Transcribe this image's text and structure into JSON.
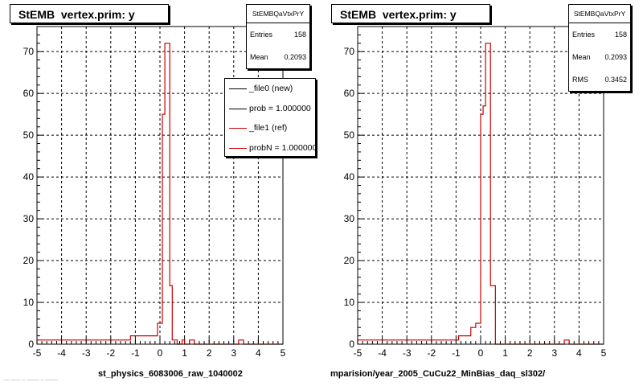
{
  "chart_data": [
    {
      "type": "step",
      "title": "StEMB  vertex.prim: y",
      "xlabel": "st_physics_6083006_raw_1040002",
      "xlim": [
        -5,
        5
      ],
      "ylim": [
        0,
        76
      ],
      "xticks": [
        "-5",
        "-4",
        "-3",
        "-2",
        "-1",
        "0",
        "1",
        "2",
        "3",
        "4",
        "5"
      ],
      "yticks": [
        "0",
        "10",
        "20",
        "30",
        "40",
        "50",
        "60",
        "70"
      ],
      "grid": true,
      "stats": {
        "name": "StEMBQaVtxPrY",
        "rows": [
          {
            "label": "Entries",
            "value": "158"
          },
          {
            "label": "Mean",
            "value": "0.2093"
          }
        ]
      },
      "legend": {
        "placement": "top-right",
        "entries": [
          {
            "label": "_file0 (new)",
            "color": "#000000"
          },
          {
            "label": "prob = 1.000000",
            "color": "#000000"
          },
          {
            "label": "_file1 (ref)",
            "color": "#cc0000"
          },
          {
            "label": "probN = 1.000000",
            "color": "#cc0000"
          }
        ]
      },
      "series": [
        {
          "color": "#cc0000",
          "bins": [
            [
              -5.0,
              -1.2,
              1
            ],
            [
              -1.2,
              -0.1,
              2
            ],
            [
              -0.1,
              0.1,
              5
            ],
            [
              0.1,
              0.2,
              55
            ],
            [
              0.2,
              0.4,
              72
            ],
            [
              0.4,
              0.5,
              14
            ],
            [
              0.5,
              0.7,
              1
            ],
            [
              0.7,
              0.9,
              0
            ],
            [
              0.9,
              1.0,
              1
            ],
            [
              1.0,
              1.2,
              0
            ],
            [
              1.2,
              1.4,
              1
            ],
            [
              1.4,
              3.2,
              0
            ],
            [
              3.2,
              3.4,
              1
            ],
            [
              3.4,
              5.0,
              0
            ]
          ]
        }
      ]
    },
    {
      "type": "step",
      "title": "StEMB  vertex.prim: y",
      "xlabel": "mparision/year_2005_CuCu22_MinBias_daq_sl302/",
      "xlim": [
        -5,
        5
      ],
      "ylim": [
        0,
        76
      ],
      "xticks": [
        "-5",
        "-4",
        "-3",
        "-2",
        "-1",
        "0",
        "1",
        "2",
        "3",
        "4",
        "5"
      ],
      "yticks": [
        "0",
        "10",
        "20",
        "30",
        "40",
        "50",
        "60",
        "70"
      ],
      "grid": true,
      "stats": {
        "name": "StEMBQaVtxPrY",
        "rows": [
          {
            "label": "Entries",
            "value": "158"
          },
          {
            "label": "Mean",
            "value": "0.2093"
          },
          {
            "label": "RMS",
            "value": "0.3452"
          }
        ]
      },
      "series": [
        {
          "color": "#cc0000",
          "bins": [
            [
              -5.0,
              -1.2,
              1
            ],
            [
              -1.2,
              -0.9,
              1
            ],
            [
              -0.9,
              -0.4,
              2
            ],
            [
              -0.4,
              -0.2,
              4
            ],
            [
              -0.2,
              0.0,
              5
            ],
            [
              0.0,
              0.1,
              55
            ],
            [
              0.1,
              0.2,
              57
            ],
            [
              0.2,
              0.4,
              72
            ],
            [
              0.4,
              0.6,
              14
            ],
            [
              0.6,
              3.4,
              0
            ],
            [
              3.4,
              3.6,
              1
            ],
            [
              3.6,
              5.0,
              0
            ]
          ]
        }
      ]
    }
  ],
  "footer_text": "__ ___ _ ____ _ ____"
}
